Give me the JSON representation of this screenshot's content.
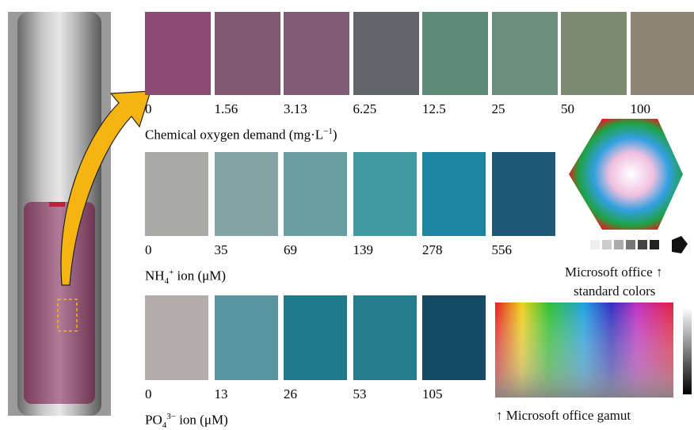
{
  "rows": [
    {
      "levels": [
        "0",
        "1.56",
        "3.13",
        "6.25",
        "12.5",
        "25",
        "50",
        "100"
      ],
      "colors": [
        "#8a4a72",
        "#7f5a72",
        "#7e5c76",
        "#63636a",
        "#5e8a7a",
        "#6a8e7c",
        "#7d8c70",
        "#8e8475"
      ],
      "label": {
        "text": "Chemical oxygen demand (mg·L",
        "sup": "−1",
        "tail": ")"
      }
    },
    {
      "levels": [
        "0",
        "35",
        "69",
        "139",
        "278",
        "556"
      ],
      "colors": [
        "#a9aaa6",
        "#85a3a4",
        "#6a9fa1",
        "#3f9aa3",
        "#1e85a0",
        "#1e5a78"
      ],
      "label": {
        "text": "NH",
        "sub": "4",
        "sup": "+",
        "tail": " ion (μM)"
      }
    },
    {
      "levels": [
        "0",
        "13",
        "26",
        "53",
        "105"
      ],
      "colors": [
        "#b3acab",
        "#5a96a2",
        "#1f7b8c",
        "#247e8e",
        "#144a64"
      ],
      "label": {
        "text": "PO",
        "sub": "4",
        "sup": "3−",
        "tail": " ion (μM)"
      }
    }
  ],
  "standard_colors_caption": [
    "Microsoft office ↑",
    "standard colors"
  ],
  "gamut_caption": "↑ Microsoft office gamut"
}
